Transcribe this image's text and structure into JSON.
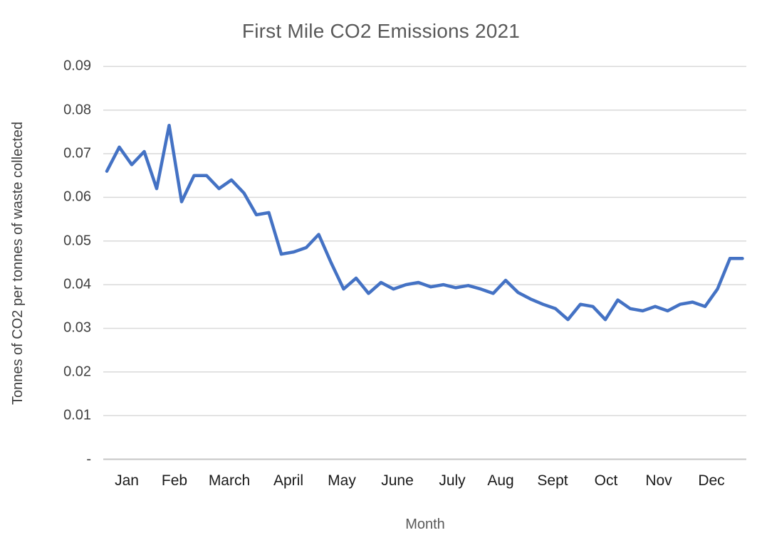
{
  "chart_data": {
    "type": "line",
    "title": "First Mile CO2 Emissions 2021",
    "xlabel": "Month",
    "ylabel": "Tonnes of CO2 per tonnes of waste collected",
    "x_tick_labels": [
      "Jan",
      "Feb",
      "March",
      "April",
      "May",
      "June",
      "July",
      "Aug",
      "Sept",
      "Oct",
      "Nov",
      "Dec"
    ],
    "y_tick_labels_bottom_to_top": [
      "-",
      "0.01",
      "0.02",
      "0.03",
      "0.04",
      "0.05",
      "0.06",
      "0.07",
      "0.08",
      "0.09"
    ],
    "ylim": [
      0,
      0.09
    ],
    "y_tick_step": 0.01,
    "grid": true,
    "legend": false,
    "x_unit": "week (52 weekly points across 2021)",
    "values": [
      0.066,
      0.0715,
      0.0675,
      0.0705,
      0.062,
      0.0765,
      0.059,
      0.065,
      0.065,
      0.062,
      0.064,
      0.061,
      0.056,
      0.0565,
      0.047,
      0.0475,
      0.0485,
      0.0515,
      0.045,
      0.039,
      0.0415,
      0.038,
      0.0405,
      0.039,
      0.04,
      0.0405,
      0.0395,
      0.04,
      0.0393,
      0.0398,
      0.039,
      0.038,
      0.041,
      0.0382,
      0.0367,
      0.0355,
      0.0345,
      0.032,
      0.0355,
      0.035,
      0.032,
      0.0365,
      0.0345,
      0.034,
      0.035,
      0.034,
      0.0355,
      0.036,
      0.035,
      0.039,
      0.046,
      0.046
    ]
  },
  "colors": {
    "line": "#4472C4",
    "gridline": "#D9D9D9",
    "axis_line": "#C6C6C6",
    "title_text": "#595959",
    "y_tick_text": "#404040",
    "x_tick_text": "#1a1a1a"
  }
}
